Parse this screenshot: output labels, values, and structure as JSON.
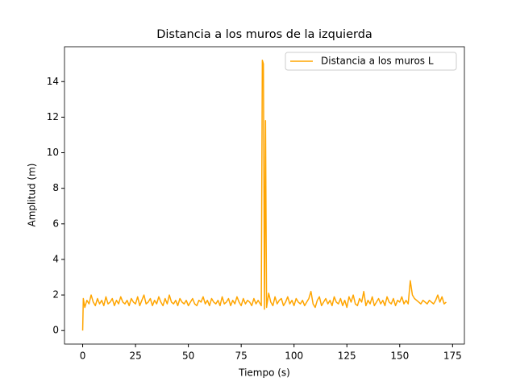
{
  "chart_data": {
    "type": "line",
    "title": "Distancia a los muros de la izquierda",
    "x_label": "Tiempo (s)",
    "y_label": "Amplitud (m)",
    "x": [
      0,
      0.3,
      1,
      2,
      3,
      4,
      5,
      6,
      7,
      8,
      9,
      10,
      11,
      12,
      13,
      14,
      15,
      16,
      17,
      18,
      19,
      20,
      21,
      22,
      23,
      24,
      25,
      26,
      27,
      28,
      29,
      30,
      31,
      32,
      33,
      34,
      35,
      36,
      37,
      38,
      39,
      40,
      41,
      42,
      43,
      44,
      45,
      46,
      47,
      48,
      49,
      50,
      51,
      52,
      53,
      54,
      55,
      56,
      57,
      58,
      59,
      60,
      61,
      62,
      63,
      64,
      65,
      66,
      67,
      68,
      69,
      70,
      71,
      72,
      73,
      74,
      75,
      76,
      77,
      78,
      79,
      80,
      81,
      82,
      83,
      84,
      84.5,
      85,
      85.5,
      86,
      86.5,
      87,
      88,
      89,
      90,
      91,
      92,
      93,
      94,
      95,
      96,
      97,
      98,
      99,
      100,
      101,
      102,
      103,
      104,
      105,
      106,
      107,
      108,
      109,
      110,
      111,
      112,
      113,
      114,
      115,
      116,
      117,
      118,
      119,
      120,
      121,
      122,
      123,
      124,
      125,
      126,
      127,
      128,
      129,
      130,
      131,
      132,
      133,
      134,
      135,
      136,
      137,
      138,
      139,
      140,
      141,
      142,
      143,
      144,
      145,
      146,
      147,
      148,
      149,
      150,
      151,
      152,
      153,
      154,
      155,
      156,
      157,
      158,
      159,
      160,
      161,
      162,
      163,
      164,
      165,
      166,
      167,
      168,
      169,
      170,
      171,
      172
    ],
    "series": [
      {
        "name": "Distancia a los muros L",
        "color": "#ffa500",
        "values": [
          0,
          1.8,
          1.3,
          1.7,
          1.5,
          2.0,
          1.6,
          1.4,
          1.8,
          1.5,
          1.7,
          1.4,
          1.9,
          1.5,
          1.6,
          1.8,
          1.4,
          1.7,
          1.5,
          1.9,
          1.6,
          1.5,
          1.7,
          1.4,
          1.8,
          1.6,
          1.5,
          1.9,
          1.4,
          1.7,
          2.0,
          1.5,
          1.6,
          1.8,
          1.4,
          1.7,
          1.5,
          1.9,
          1.6,
          1.4,
          1.8,
          1.5,
          2.0,
          1.6,
          1.5,
          1.7,
          1.4,
          1.8,
          1.6,
          1.5,
          1.7,
          1.4,
          1.6,
          1.8,
          1.5,
          1.4,
          1.7,
          1.6,
          1.9,
          1.5,
          1.7,
          1.4,
          1.8,
          1.6,
          1.5,
          1.7,
          1.4,
          1.9,
          1.5,
          1.6,
          1.8,
          1.4,
          1.7,
          1.5,
          1.9,
          1.6,
          1.4,
          1.8,
          1.5,
          1.7,
          1.6,
          1.4,
          1.8,
          1.5,
          1.7,
          1.5,
          1.4,
          15.2,
          15.0,
          1.2,
          11.8,
          1.3,
          2.1,
          1.6,
          1.4,
          1.9,
          1.5,
          1.7,
          1.8,
          1.4,
          1.6,
          1.9,
          1.5,
          1.7,
          1.4,
          1.8,
          1.6,
          1.5,
          1.7,
          1.4,
          1.6,
          1.8,
          2.2,
          1.5,
          1.3,
          1.7,
          1.9,
          1.4,
          1.6,
          1.8,
          1.5,
          1.7,
          1.4,
          1.9,
          1.6,
          1.5,
          1.8,
          1.4,
          1.7,
          1.3,
          1.9,
          1.6,
          2.0,
          1.5,
          1.4,
          1.8,
          1.6,
          2.2,
          1.4,
          1.7,
          1.5,
          1.9,
          1.4,
          1.6,
          1.8,
          1.5,
          1.7,
          1.4,
          1.9,
          1.6,
          1.5,
          1.8,
          1.4,
          1.7,
          1.6,
          1.9,
          1.5,
          1.7,
          1.5,
          2.8,
          2.0,
          1.8,
          1.7,
          1.6,
          1.5,
          1.7,
          1.6,
          1.5,
          1.7,
          1.6,
          1.5,
          1.7,
          2.0,
          1.6,
          1.9,
          1.5,
          1.6
        ]
      }
    ],
    "xlim": [
      -8.6,
      180.6
    ],
    "xticks": [
      0,
      25,
      50,
      75,
      100,
      125,
      150,
      175
    ],
    "ylim": [
      -0.76,
      15.96
    ],
    "yticks": [
      0,
      2,
      4,
      6,
      8,
      10,
      12,
      14
    ],
    "legend": "upper right"
  }
}
